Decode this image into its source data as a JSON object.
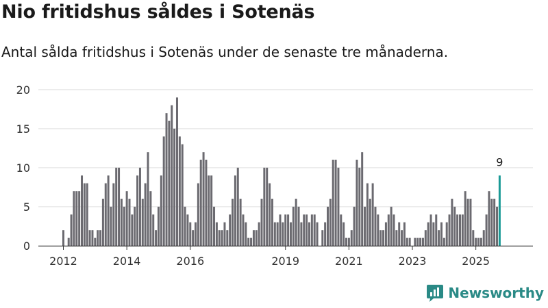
{
  "chart_data": {
    "type": "bar",
    "title": "Nio fritidshus såldes i Sotenäs",
    "subtitle": "Antal sålda fritidshus i Sotenäs under de senaste tre månaderna.",
    "ylim": [
      0,
      20
    ],
    "yticks": [
      0,
      5,
      10,
      15,
      20
    ],
    "xtick_labels": [
      {
        "label": "2012",
        "index": 0
      },
      {
        "label": "2014",
        "index": 24
      },
      {
        "label": "2016",
        "index": 48
      },
      {
        "label": "2019",
        "index": 84
      },
      {
        "label": "2021",
        "index": 108
      },
      {
        "label": "2023",
        "index": 132
      },
      {
        "label": "2025",
        "index": 156
      }
    ],
    "grid": true,
    "highlight_color": "#1a9a96",
    "bar_color": "#6b6a70",
    "highlight_label": "9",
    "values": [
      2,
      0,
      1,
      4,
      7,
      7,
      7,
      9,
      8,
      8,
      2,
      2,
      1,
      2,
      2,
      6,
      8,
      9,
      5,
      8,
      10,
      10,
      6,
      5,
      7,
      6,
      4,
      5,
      9,
      10,
      6,
      8,
      12,
      7,
      4,
      2,
      5,
      9,
      14,
      17,
      16,
      18,
      15,
      19,
      14,
      13,
      5,
      4,
      3,
      2,
      3,
      8,
      11,
      12,
      11,
      9,
      9,
      5,
      3,
      2,
      2,
      3,
      2,
      4,
      6,
      9,
      10,
      6,
      4,
      3,
      1,
      1,
      2,
      2,
      3,
      6,
      10,
      10,
      8,
      6,
      3,
      3,
      4,
      3,
      4,
      4,
      3,
      5,
      6,
      5,
      3,
      4,
      4,
      3,
      4,
      4,
      3,
      0,
      2,
      3,
      5,
      6,
      11,
      11,
      10,
      4,
      3,
      1,
      1,
      2,
      5,
      11,
      10,
      12,
      5,
      8,
      6,
      8,
      5,
      4,
      2,
      2,
      3,
      4,
      5,
      4,
      2,
      3,
      2,
      3,
      1,
      1,
      0,
      1,
      1,
      1,
      1,
      2,
      3,
      4,
      3,
      4,
      2,
      3,
      1,
      3,
      4,
      6,
      5,
      4,
      4,
      4,
      7,
      6,
      6,
      2,
      1,
      1,
      1,
      2,
      4,
      7,
      6,
      6,
      5,
      9
    ]
  },
  "logo": {
    "text": "Newsworthy",
    "icon": "newsworthy-chart-logo-icon"
  }
}
